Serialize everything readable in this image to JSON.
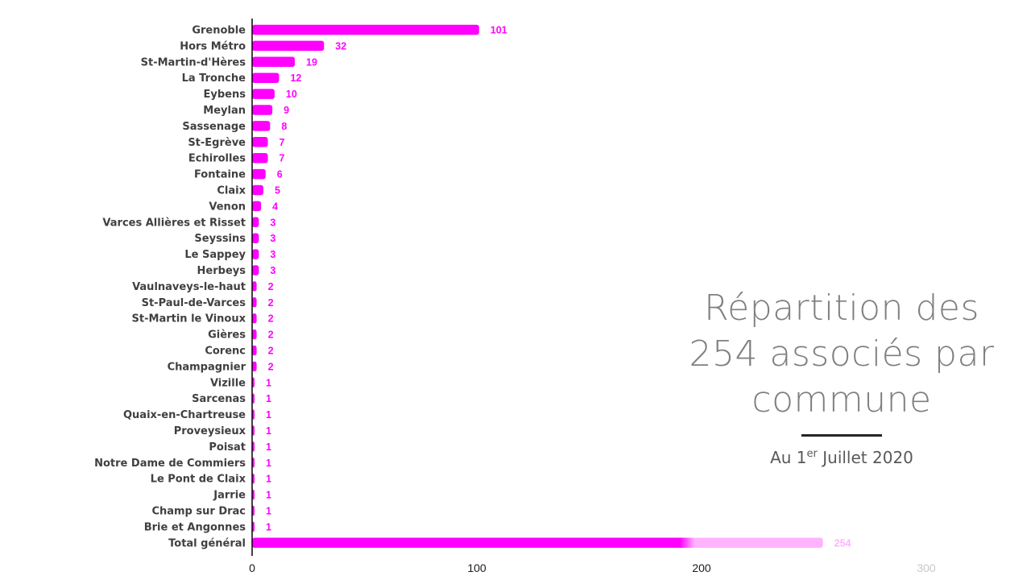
{
  "colors": {
    "bar": "#ff00ff",
    "bar_light": "#ffb3ff",
    "label_value": "#ff00ff",
    "label_value_light": "#ffb3ff",
    "axis": "#000000",
    "category_text": "#404040",
    "title_text": "#7f7f7f"
  },
  "title": {
    "lines": [
      "Répartition des",
      "254 associés par",
      "commune"
    ],
    "subtitle_prefix": "Au 1",
    "subtitle_sup": "er",
    "subtitle_suffix": " Juillet 2020"
  },
  "chart_data": {
    "type": "bar",
    "orientation": "horizontal",
    "categories": [
      "Grenoble",
      "Hors Métro",
      "St-Martin-d'Hères",
      "La Tronche",
      "Eybens",
      "Meylan",
      "Sassenage",
      "St-Egrève",
      "Echirolles",
      "Fontaine",
      "Claix",
      "Venon",
      "Varces Allières et Risset",
      "Seyssins",
      "Le Sappey",
      "Herbeys",
      "Vaulnaveys-le-haut",
      "St-Paul-de-Varces",
      "St-Martin le Vinoux",
      "Gières",
      "Corenc",
      "Champagnier",
      "Vizille",
      "Sarcenas",
      "Quaix-en-Chartreuse",
      "Proveysieux",
      "Poisat",
      "Notre Dame de Commiers",
      "Le Pont de Claix",
      "Jarrie",
      "Champ sur Drac",
      "Brie et Angonnes",
      "Total général"
    ],
    "values": [
      101,
      32,
      19,
      12,
      10,
      9,
      8,
      7,
      7,
      6,
      5,
      4,
      3,
      3,
      3,
      3,
      2,
      2,
      2,
      2,
      2,
      2,
      1,
      1,
      1,
      1,
      1,
      1,
      1,
      1,
      1,
      1,
      254
    ],
    "value_labels": [
      "101",
      "32",
      "19",
      "12",
      "10",
      "9",
      "8",
      "7",
      "7",
      "6",
      "5",
      "4",
      "3",
      "3",
      "3",
      "3",
      "2",
      "2",
      "2",
      "2",
      "2",
      "2",
      "1",
      "1",
      "1",
      "1",
      "1",
      "1",
      "1",
      "1",
      "1",
      "1",
      "254"
    ],
    "xlim": [
      0,
      300
    ],
    "xticks": [
      0,
      100,
      200,
      300
    ],
    "xtick_labels": [
      "0",
      "100",
      "200",
      "300"
    ],
    "grid": false,
    "legend": "none",
    "xlabel": "",
    "ylabel": ""
  }
}
